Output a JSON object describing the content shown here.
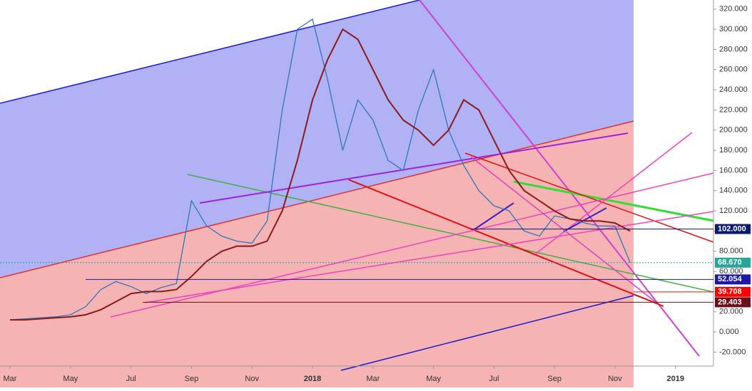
{
  "chart_data": {
    "type": "line",
    "categories": [
      "Mar",
      null,
      null,
      null,
      "May",
      null,
      null,
      null,
      "Jul",
      null,
      null,
      null,
      "Sep",
      null,
      null,
      null,
      "Nov",
      null,
      null,
      null,
      "2018",
      null,
      null,
      null,
      "Mar",
      null,
      null,
      null,
      "May",
      null,
      null,
      null,
      "Jul",
      null,
      null,
      null,
      "Sep",
      null,
      null,
      null,
      "Nov",
      null,
      null,
      null,
      "2019",
      null
    ],
    "series": [
      {
        "color": "#2f78b7",
        "values": [
          12,
          13,
          14,
          15,
          17,
          25,
          42,
          50,
          45,
          38,
          44,
          48,
          130,
          105,
          95,
          90,
          88,
          110,
          220,
          300,
          310,
          250,
          180,
          230,
          210,
          170,
          160,
          220,
          260,
          200,
          165,
          140,
          125,
          120,
          100,
          95,
          115,
          112,
          108,
          105,
          105,
          68.67,
          null,
          null,
          null,
          null
        ]
      },
      {
        "color": "#8b1a1a",
        "values": [
          12,
          12,
          13,
          14,
          15,
          17,
          22,
          30,
          38,
          40,
          40,
          42,
          55,
          70,
          80,
          85,
          85,
          90,
          120,
          170,
          230,
          270,
          300,
          290,
          260,
          230,
          210,
          200,
          185,
          200,
          230,
          220,
          190,
          160,
          140,
          130,
          120,
          112,
          110,
          110,
          108,
          100,
          null,
          null,
          null,
          null
        ]
      }
    ],
    "ylim": [
      -55,
      329
    ],
    "yticks": [
      {
        "value": -20,
        "label": "-20.000"
      },
      {
        "value": 0,
        "label": "0.000"
      },
      {
        "value": 20,
        "label": "20.000"
      },
      {
        "value": 40,
        "label": "40.000"
      },
      {
        "value": 60,
        "label": "60.000"
      },
      {
        "value": 80,
        "label": "80.000"
      },
      {
        "value": 100,
        "label": "100.000"
      },
      {
        "value": 120,
        "label": "120.000"
      },
      {
        "value": 140,
        "label": "140.000"
      },
      {
        "value": 160,
        "label": "160.000"
      },
      {
        "value": 180,
        "label": "180.000"
      },
      {
        "value": 200,
        "label": "200.000"
      },
      {
        "value": 220,
        "label": "220.000"
      },
      {
        "value": 240,
        "label": "240.000"
      },
      {
        "value": 260,
        "label": "260.000"
      },
      {
        "value": 280,
        "label": "280.000"
      },
      {
        "value": 300,
        "label": "300.000"
      },
      {
        "value": 320,
        "label": "320.000"
      }
    ],
    "price_lines": [
      {
        "value": 102,
        "label": "102.000",
        "color": "#0b1a6e"
      },
      {
        "value": 68.67,
        "label": "68.670",
        "color": "#26a69a"
      },
      {
        "value": 52.054,
        "label": "52.054",
        "color": "#1a1aa6"
      },
      {
        "value": 39.708,
        "label": "39.708",
        "color": "#ff0000"
      },
      {
        "value": 29.403,
        "label": "29.403",
        "color": "#6b0f1a"
      }
    ]
  }
}
